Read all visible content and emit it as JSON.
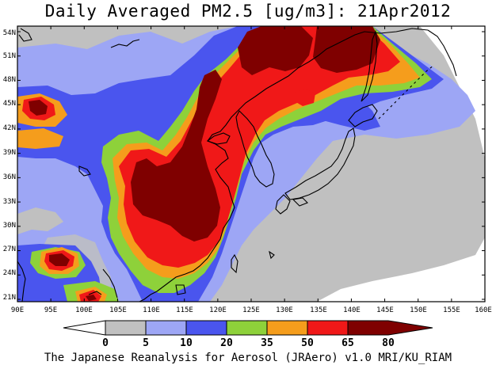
{
  "title": "Daily Averaged PM2.5 [ug/m3]: 21Apr2012",
  "footer": "The Japanese Reanalysis for Aerosol (JRAero) v1.0 MRI/KU_RIAM",
  "map": {
    "lat_labels": [
      "54N",
      "51N",
      "48N",
      "45N",
      "42N",
      "39N",
      "36N",
      "33N",
      "30N",
      "27N",
      "24N",
      "21N"
    ],
    "lon_labels": [
      "90E",
      "95E",
      "100E",
      "105E",
      "110E",
      "115E",
      "120E",
      "125E",
      "130E",
      "135E",
      "140E",
      "145E",
      "150E",
      "155E",
      "160E"
    ]
  },
  "colorbar": {
    "levels": [
      "0",
      "5",
      "10",
      "20",
      "35",
      "50",
      "65",
      "80"
    ],
    "colors": [
      "#ffffff",
      "#c0c0c0",
      "#9da6f5",
      "#4a55ee",
      "#8ed13a",
      "#f59d1c",
      "#f01818",
      "#7f0000"
    ]
  }
}
